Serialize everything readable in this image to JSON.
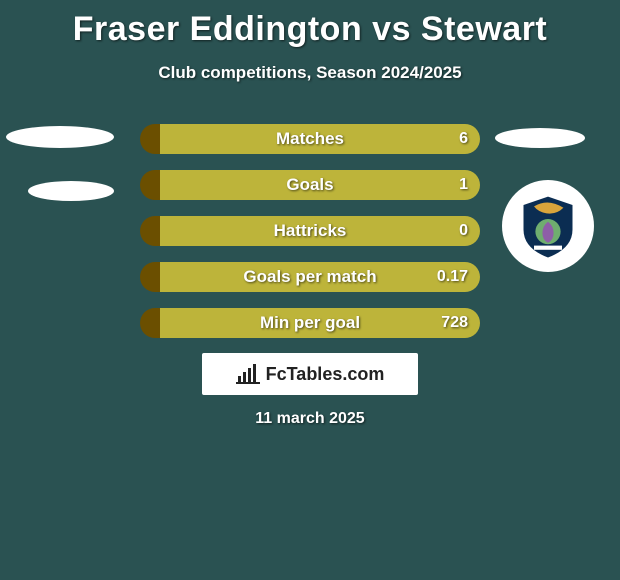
{
  "title": "Fraser Eddington vs Stewart",
  "subtitle": "Club competitions, Season 2024/2025",
  "date": "11 march 2025",
  "brand": "FcTables.com",
  "colors": {
    "background": "#2a5252",
    "bar_left": "#6b4f00",
    "bar_right": "#bdb43a",
    "text": "#ffffff"
  },
  "bars": [
    {
      "label": "Matches",
      "left_val": "",
      "right_val": "6",
      "left_pct": 6,
      "right_pct": 94
    },
    {
      "label": "Goals",
      "left_val": "",
      "right_val": "1",
      "left_pct": 6,
      "right_pct": 94
    },
    {
      "label": "Hattricks",
      "left_val": "",
      "right_val": "0",
      "left_pct": 6,
      "right_pct": 94
    },
    {
      "label": "Goals per match",
      "left_val": "",
      "right_val": "0.17",
      "left_pct": 6,
      "right_pct": 94
    },
    {
      "label": "Min per goal",
      "left_val": "",
      "right_val": "728",
      "left_pct": 6,
      "right_pct": 94
    }
  ],
  "bar_styling": {
    "outer_width": 340,
    "outer_height": 30,
    "radius": 15,
    "gap": 16,
    "label_fontsize": 17,
    "value_fontsize": 16
  }
}
